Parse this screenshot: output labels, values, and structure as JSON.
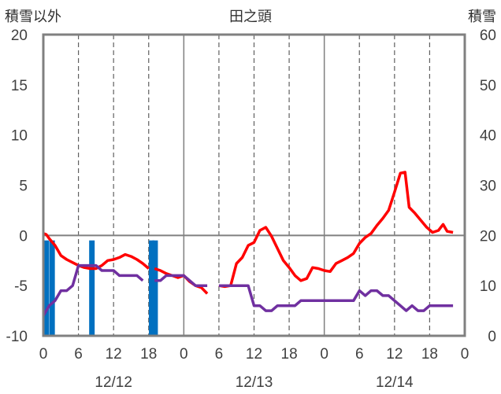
{
  "chart_data": {
    "type": "line",
    "title": "田之頭",
    "left_axis_label": "積雪以外",
    "right_axis_label": "積雪",
    "left_ylim": [
      -10,
      20
    ],
    "right_ylim": [
      0,
      60
    ],
    "left_ticks": [
      "20",
      "15",
      "10",
      "5",
      "0",
      "-5",
      "-10"
    ],
    "right_ticks": [
      "60",
      "50",
      "40",
      "30",
      "20",
      "10",
      "0"
    ],
    "x_range_hours": [
      0,
      72
    ],
    "x_tick_labels": [
      "0",
      "6",
      "12",
      "18",
      "0",
      "6",
      "12",
      "18",
      "0",
      "6",
      "12",
      "18",
      "0"
    ],
    "date_labels": [
      "12/12",
      "12/13",
      "12/14"
    ],
    "grid": "vertical dashed lines every 6 h, solid at day boundaries and at 0 of the left axis",
    "series": [
      {
        "color": "#ff0000",
        "axis": "left",
        "points": [
          [
            0,
            0.2
          ],
          [
            0.5,
            0.1
          ],
          [
            1,
            -0.3
          ],
          [
            2,
            -1
          ],
          [
            3,
            -2
          ],
          [
            4,
            -2.4
          ],
          [
            5,
            -2.7
          ],
          [
            6,
            -3
          ],
          [
            7,
            -3.2
          ],
          [
            8,
            -3.3
          ],
          [
            9,
            -3.3
          ],
          [
            10,
            -3
          ],
          [
            11,
            -2.5
          ],
          [
            12,
            -2.4
          ],
          [
            13,
            -2.2
          ],
          [
            14,
            -1.9
          ],
          [
            15,
            -2.1
          ],
          [
            16,
            -2.4
          ],
          [
            17,
            -2.8
          ],
          [
            18,
            -3.3
          ],
          [
            null,
            null
          ],
          [
            19,
            -3.3
          ],
          [
            20,
            -3.5
          ],
          [
            21,
            -3.8
          ],
          [
            22,
            -4
          ],
          [
            23,
            -4.2
          ],
          [
            24,
            -4
          ],
          [
            25,
            -4.6
          ],
          [
            26,
            -5
          ],
          [
            27,
            -5.2
          ],
          [
            28,
            -5.8
          ],
          [
            null,
            null
          ],
          [
            30,
            -5
          ],
          [
            31,
            -5.1
          ],
          [
            32,
            -5
          ],
          [
            33,
            -2.8
          ],
          [
            34,
            -2.2
          ],
          [
            35,
            -1
          ],
          [
            36,
            -0.7
          ],
          [
            37,
            0.5
          ],
          [
            38,
            0.8
          ],
          [
            39,
            -0.1
          ],
          [
            40,
            -1.3
          ],
          [
            41,
            -2.5
          ],
          [
            42,
            -3.2
          ],
          [
            43,
            -4
          ],
          [
            44,
            -4.5
          ],
          [
            45,
            -4.3
          ],
          [
            46,
            -3.2
          ],
          [
            47,
            -3.3
          ],
          [
            48,
            -3.5
          ],
          [
            49,
            -3.6
          ],
          [
            50,
            -2.8
          ],
          [
            51,
            -2.5
          ],
          [
            52,
            -2.2
          ],
          [
            53,
            -1.8
          ],
          [
            54,
            -0.8
          ],
          [
            55,
            -0.2
          ],
          [
            56,
            0.2
          ],
          [
            57,
            1
          ],
          [
            58,
            1.7
          ],
          [
            59,
            2.5
          ],
          [
            60,
            4.3
          ],
          [
            61,
            6.2
          ],
          [
            61.8,
            6.3
          ],
          [
            62.5,
            2.8
          ],
          [
            63.5,
            2.2
          ],
          [
            64.5,
            1.5
          ],
          [
            65.5,
            0.8
          ],
          [
            66.5,
            0.3
          ],
          [
            67.5,
            0.5
          ],
          [
            68.3,
            1.1
          ],
          [
            69,
            0.4
          ],
          [
            70,
            0.3
          ]
        ]
      },
      {
        "color": "#7030a0",
        "axis": "left",
        "points": [
          [
            0,
            -8
          ],
          [
            1,
            -7
          ],
          [
            2,
            -6.5
          ],
          [
            3,
            -5.5
          ],
          [
            4,
            -5.5
          ],
          [
            5,
            -5
          ],
          [
            6,
            -3
          ],
          [
            7,
            -3
          ],
          [
            8,
            -3
          ],
          [
            9,
            -3
          ],
          [
            10,
            -3.5
          ],
          [
            11,
            -3.5
          ],
          [
            12,
            -3.5
          ],
          [
            13,
            -4
          ],
          [
            14,
            -4
          ],
          [
            15,
            -4
          ],
          [
            16,
            -4
          ],
          [
            17,
            -4.5
          ],
          [
            null,
            null
          ],
          [
            19,
            -4.5
          ],
          [
            20,
            -4.5
          ],
          [
            21,
            -4
          ],
          [
            22,
            -4
          ],
          [
            23,
            -4
          ],
          [
            24,
            -4
          ],
          [
            25,
            -4.5
          ],
          [
            26,
            -5
          ],
          [
            27,
            -5
          ],
          [
            28,
            -5
          ],
          [
            null,
            null
          ],
          [
            30,
            -5
          ],
          [
            31,
            -5
          ],
          [
            32,
            -5
          ],
          [
            33,
            -5
          ],
          [
            34,
            -5
          ],
          [
            35,
            -5
          ],
          [
            36,
            -7
          ],
          [
            37,
            -7
          ],
          [
            38,
            -7.5
          ],
          [
            39,
            -7.5
          ],
          [
            40,
            -7
          ],
          [
            41,
            -7
          ],
          [
            42,
            -7
          ],
          [
            43,
            -7
          ],
          [
            44,
            -6.5
          ],
          [
            45,
            -6.5
          ],
          [
            46,
            -6.5
          ],
          [
            47,
            -6.5
          ],
          [
            48,
            -6.5
          ],
          [
            49,
            -6.5
          ],
          [
            50,
            -6.5
          ],
          [
            51,
            -6.5
          ],
          [
            52,
            -6.5
          ],
          [
            53,
            -6.5
          ],
          [
            54,
            -5.5
          ],
          [
            55,
            -6
          ],
          [
            56,
            -5.5
          ],
          [
            57,
            -5.5
          ],
          [
            58,
            -6
          ],
          [
            59,
            -6
          ],
          [
            60,
            -6.5
          ],
          [
            61,
            -7
          ],
          [
            62,
            -7.5
          ],
          [
            63,
            -7
          ],
          [
            64,
            -7.5
          ],
          [
            65,
            -7.5
          ],
          [
            66,
            -7
          ],
          [
            67,
            -7
          ],
          [
            68,
            -7
          ],
          [
            69,
            -7
          ],
          [
            70,
            -7
          ]
        ]
      },
      {
        "color": "#0070c0",
        "axis": "right",
        "type": "bar",
        "bars": [
          [
            0.5,
            19
          ],
          [
            1.5,
            19
          ],
          [
            8.3,
            19
          ],
          [
            18.5,
            19
          ],
          [
            19.1,
            19
          ]
        ]
      }
    ]
  }
}
